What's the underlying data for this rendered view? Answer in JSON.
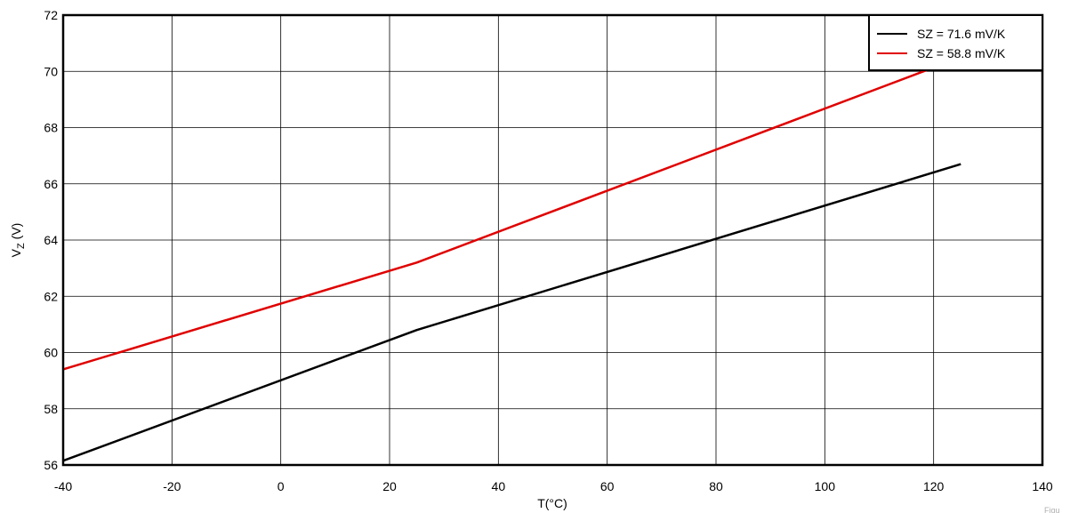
{
  "chart_data": {
    "type": "line",
    "title": "",
    "xlabel": "T(°C)",
    "ylabel": "V",
    "ylabel_subscript": "Z",
    "ylabel_unit": " (V)",
    "xlim": [
      -40,
      140
    ],
    "ylim": [
      56,
      72
    ],
    "x_ticks": [
      "-40",
      "-20",
      "0",
      "20",
      "40",
      "60",
      "80",
      "100",
      "120",
      "140"
    ],
    "y_ticks": [
      "56",
      "58",
      "60",
      "62",
      "64",
      "66",
      "68",
      "70",
      "72"
    ],
    "grid": true,
    "legend_position": "top-right",
    "series": [
      {
        "name": "SZ = 71.6 mV/K",
        "color": "#000000",
        "x": [
          -40,
          25,
          125
        ],
        "y": [
          56.15,
          60.8,
          66.7
        ]
      },
      {
        "name": "SZ = 58.8 mV/K",
        "color": "#e00000",
        "x": [
          -40,
          25,
          125
        ],
        "y": [
          59.4,
          63.2,
          70.5
        ]
      }
    ],
    "corner_note": "Figu"
  }
}
